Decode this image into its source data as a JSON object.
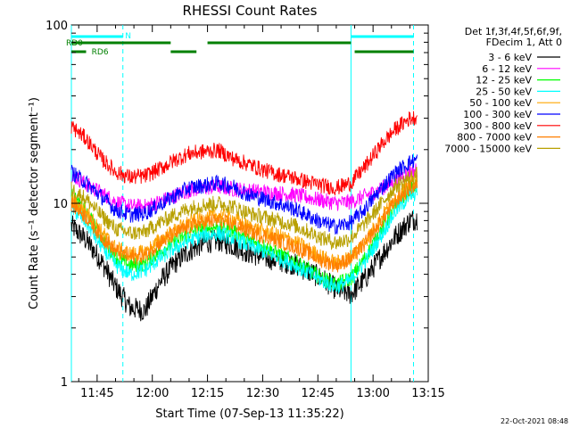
{
  "chart_data": {
    "type": "line",
    "title": "RHESSI Count Rates",
    "xlabel": "Start Time (07-Sep-13 11:35:22)",
    "ylabel": "Count Rate (s⁻¹ detector segment⁻¹)",
    "yscale": "log",
    "ylim": [
      1,
      100
    ],
    "xlim": [
      "11:38",
      "13:15"
    ],
    "x_ticks": [
      "11:45",
      "12:00",
      "12:15",
      "12:30",
      "12:45",
      "13:00",
      "13:15"
    ],
    "y_ticks": [
      "1",
      "10",
      "100"
    ],
    "legend_header": [
      "Det 1f,3f,4f,5f,6f,9f,",
      "FDecim 1, Att 0"
    ],
    "legend_placement": "top-right outside plot",
    "timestamp": "22-Oct-2021 08:48",
    "x": [
      "11:38",
      "11:42",
      "11:46",
      "11:50",
      "11:54",
      "11:58",
      "12:02",
      "12:06",
      "12:10",
      "12:14",
      "12:18",
      "12:22",
      "12:26",
      "12:30",
      "12:34",
      "12:38",
      "12:42",
      "12:46",
      "12:50",
      "12:54",
      "12:58",
      "13:02",
      "13:06",
      "13:10",
      "13:12"
    ],
    "series": [
      {
        "name": "3 - 6 keV",
        "color": "#000000",
        "values": [
          7.5,
          6.2,
          4.8,
          3.4,
          2.6,
          2.5,
          3.6,
          4.6,
          5.4,
          6.0,
          6.2,
          5.8,
          5.3,
          5.0,
          4.8,
          4.6,
          4.2,
          3.8,
          3.3,
          3.1,
          3.8,
          5.0,
          6.5,
          8.0,
          8.2
        ]
      },
      {
        "name": "6 - 12 keV",
        "color": "#ff00ff",
        "values": [
          14.5,
          12.8,
          11.5,
          10.2,
          9.6,
          9.6,
          10.2,
          11.0,
          11.8,
          12.2,
          12.4,
          12.0,
          11.8,
          11.6,
          11.4,
          11.2,
          10.8,
          10.4,
          10.0,
          10.2,
          11.0,
          12.0,
          13.4,
          15.0,
          15.5
        ]
      },
      {
        "name": "12 - 25 keV",
        "color": "#00ff00",
        "values": [
          11.0,
          9.0,
          6.5,
          5.0,
          4.5,
          4.6,
          5.4,
          6.0,
          6.8,
          7.2,
          7.4,
          7.0,
          6.2,
          5.8,
          5.2,
          4.8,
          4.3,
          3.8,
          3.5,
          3.8,
          5.0,
          7.0,
          9.5,
          12.0,
          12.5
        ]
      },
      {
        "name": "25 - 50 keV",
        "color": "#00ffff",
        "values": [
          9.5,
          7.8,
          5.8,
          4.5,
          4.0,
          4.2,
          4.9,
          5.6,
          6.2,
          6.6,
          6.8,
          6.4,
          5.8,
          5.4,
          5.0,
          4.6,
          4.1,
          3.7,
          3.4,
          3.7,
          4.8,
          6.5,
          9.0,
          11.0,
          11.5
        ]
      },
      {
        "name": "50 - 100 keV",
        "color": "#ffa500",
        "values": [
          10.5,
          9.0,
          7.0,
          5.6,
          5.2,
          5.3,
          6.2,
          7.0,
          7.8,
          8.2,
          8.6,
          8.2,
          7.4,
          7.0,
          6.6,
          6.2,
          5.6,
          5.0,
          4.6,
          5.0,
          6.2,
          8.2,
          10.8,
          13.0,
          13.5
        ]
      },
      {
        "name": "100 - 300 keV",
        "color": "#0000ff",
        "values": [
          15.0,
          13.0,
          11.0,
          9.2,
          8.6,
          8.8,
          9.8,
          11.0,
          12.2,
          12.6,
          13.0,
          12.4,
          11.2,
          10.6,
          10.0,
          9.4,
          8.6,
          7.8,
          7.4,
          7.8,
          9.4,
          12.0,
          14.8,
          17.0,
          17.5
        ]
      },
      {
        "name": "300 - 800 keV",
        "color": "#ff0000",
        "values": [
          27.0,
          23.0,
          18.0,
          15.0,
          14.0,
          14.2,
          15.6,
          17.4,
          19.0,
          19.5,
          19.8,
          17.8,
          16.6,
          15.4,
          14.6,
          14.0,
          13.2,
          12.6,
          12.2,
          13.0,
          16.2,
          21.0,
          26.0,
          30.0,
          30.5
        ]
      },
      {
        "name": "800 - 7000 keV",
        "color": "#ff7f00",
        "values": [
          10.0,
          8.4,
          6.6,
          5.4,
          5.0,
          5.1,
          6.0,
          6.7,
          7.4,
          7.8,
          8.0,
          7.6,
          7.0,
          6.6,
          6.2,
          5.8,
          5.3,
          4.8,
          4.5,
          4.9,
          6.0,
          7.8,
          10.2,
          12.2,
          12.6
        ]
      },
      {
        "name": "7000 - 15000 keV",
        "color": "#b8a000",
        "values": [
          12.0,
          10.6,
          8.6,
          7.2,
          6.8,
          6.9,
          7.8,
          8.6,
          9.4,
          9.8,
          10.0,
          9.6,
          8.8,
          8.4,
          8.0,
          7.6,
          7.0,
          6.4,
          6.0,
          6.4,
          7.8,
          9.8,
          12.4,
          14.0,
          14.5
        ]
      }
    ],
    "attenuator_lines": {
      "color": "#00ffff",
      "solid_x": [
        "11:38",
        "12:54"
      ],
      "dashed_x": [
        "11:52",
        "13:11"
      ]
    },
    "flags": [
      {
        "label": "N",
        "color": "#00ffff",
        "segments": [
          [
            "11:38",
            "11:52"
          ],
          [
            "12:54",
            "13:11"
          ]
        ]
      },
      {
        "label": "RD0",
        "color": "#008000",
        "segments": [
          [
            "11:38",
            "12:05"
          ],
          [
            "12:15",
            "12:54"
          ]
        ]
      },
      {
        "label": "RD6",
        "color": "#008000",
        "segments": [
          [
            "11:38",
            "11:42"
          ],
          [
            "12:05",
            "12:12"
          ],
          [
            "12:55",
            "13:11"
          ]
        ]
      }
    ]
  }
}
